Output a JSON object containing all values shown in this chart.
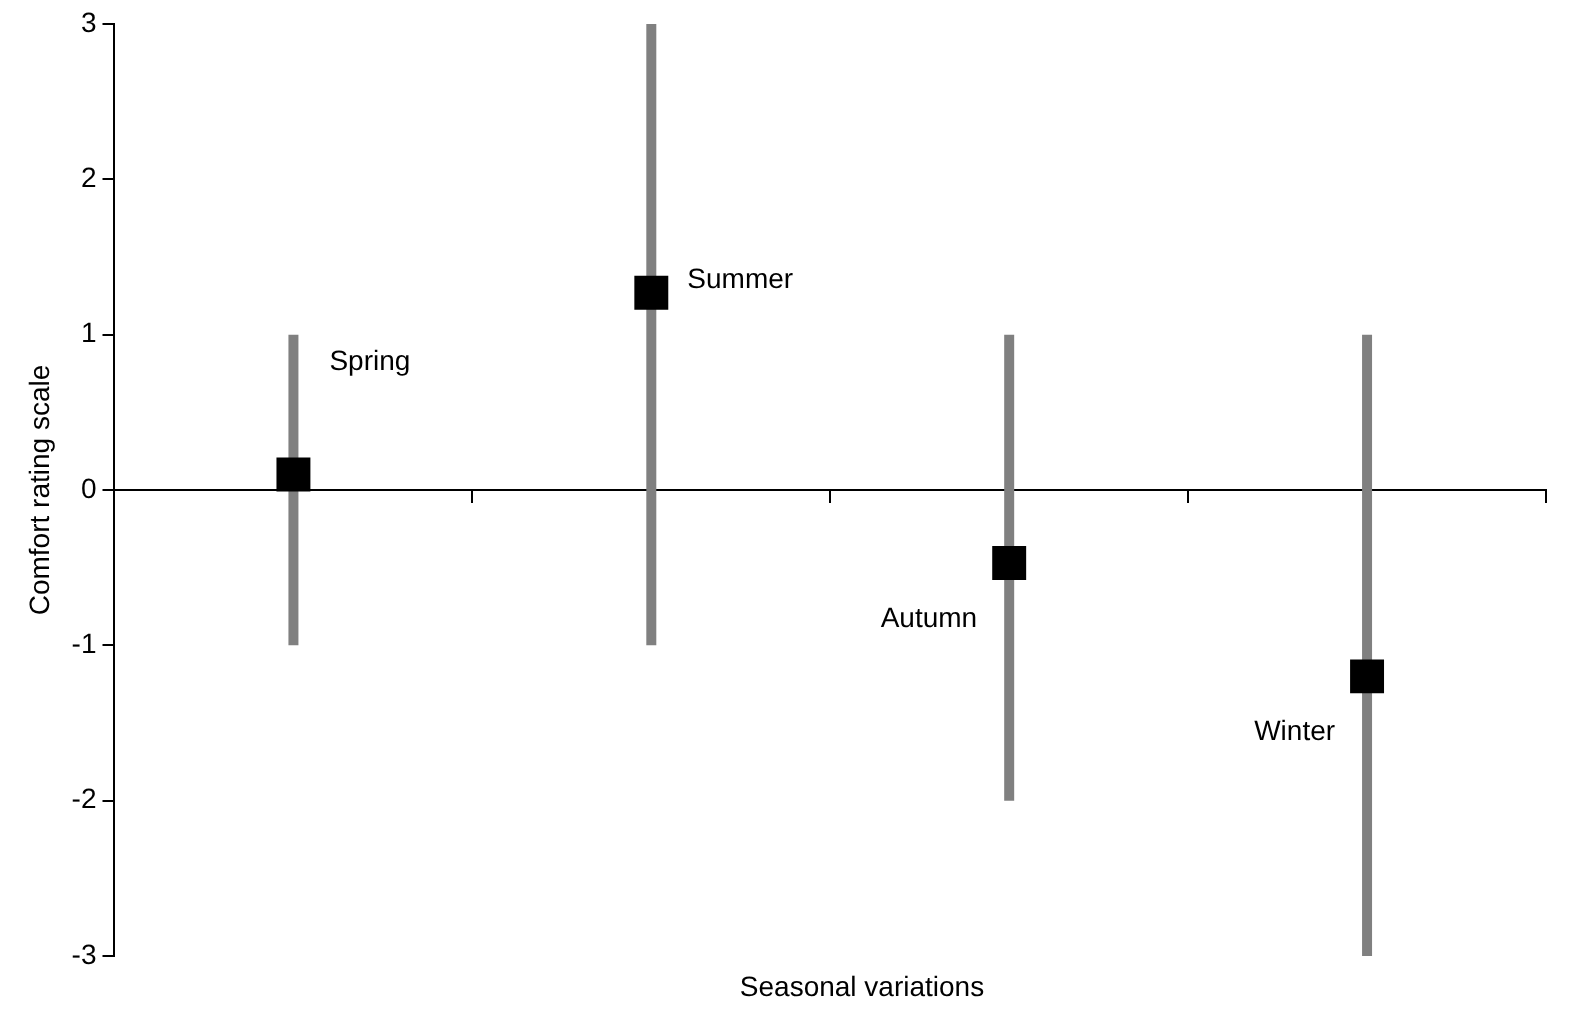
{
  "chart_data": {
    "type": "scatter",
    "xlabel": "Seasonal variations",
    "ylabel": "Comfort rating scale",
    "categories": [
      null,
      null,
      null,
      null
    ],
    "series": [
      {
        "name": "Spring",
        "color": "#000000",
        "values": [
          0.1,
          null,
          null,
          null
        ],
        "errors": [
          [
            -1,
            1
          ],
          null,
          null,
          null
        ]
      },
      {
        "name": "Summer",
        "color": "#000000",
        "values": [
          null,
          1.27,
          null,
          null
        ],
        "errors": [
          null,
          [
            -1,
            3
          ],
          null,
          null
        ]
      },
      {
        "name": "Autumn",
        "color": "#000000",
        "values": [
          null,
          null,
          -0.47,
          null
        ],
        "errors": [
          null,
          null,
          [
            -2,
            1
          ],
          null
        ]
      },
      {
        "name": "Winter",
        "color": "#000000",
        "values": [
          null,
          null,
          null,
          -1.2
        ],
        "errors": [
          null,
          null,
          null,
          [
            -3,
            1
          ]
        ]
      }
    ],
    "ylim": [
      -3,
      3
    ],
    "yticks": [
      -3,
      -2,
      -1,
      0,
      1,
      2,
      3
    ],
    "marker": "square",
    "legend": false
  }
}
